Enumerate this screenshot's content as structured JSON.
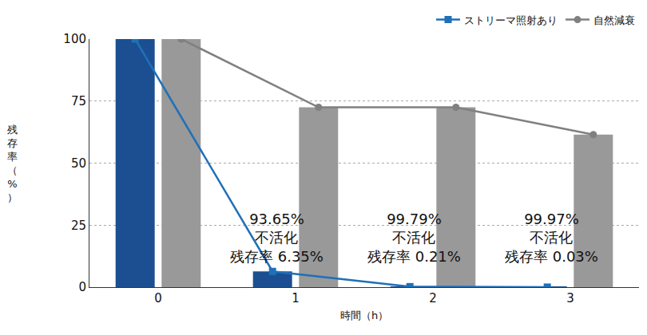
{
  "chart_data": {
    "type": "bar",
    "categories": [
      "0",
      "1",
      "2",
      "3"
    ],
    "x_label": "時間（h）",
    "y_label": "残存率（%）",
    "series": [
      {
        "name": "ストリーマ照射あり",
        "color": "#1b4f91",
        "marker": "square",
        "values": [
          100,
          6.35,
          0.21,
          0.03
        ]
      },
      {
        "name": "自然減衰",
        "color": "#999999",
        "marker": "circle",
        "values": [
          100,
          72.5,
          72.5,
          61.5
        ]
      }
    ],
    "ylim": [
      0,
      100
    ],
    "yticks": [
      0,
      25,
      50,
      75,
      100
    ],
    "grid": true,
    "legend": "top right",
    "annotations": [
      {
        "category": "1",
        "lines": [
          "93.65%",
          "不活化",
          "残存率 6.35%"
        ]
      },
      {
        "category": "2",
        "lines": [
          "99.79%",
          "不活化",
          "残存率 0.21%"
        ]
      },
      {
        "category": "3",
        "lines": [
          "99.97%",
          "不活化",
          "残存率 0.03%"
        ]
      }
    ]
  }
}
